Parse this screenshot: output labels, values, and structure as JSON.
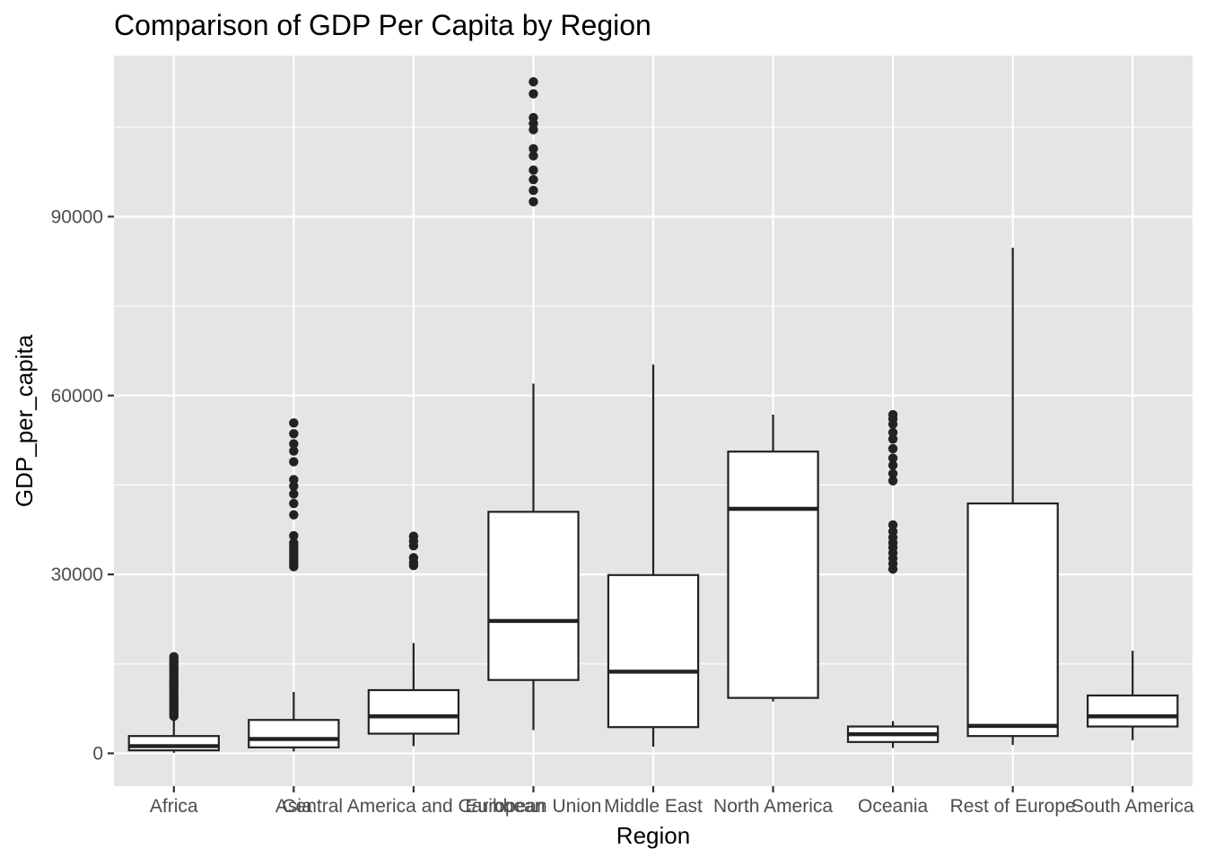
{
  "chart_data": {
    "type": "boxplot",
    "title": "Comparison of GDP Per Capita by Region",
    "xlabel": "Region",
    "ylabel": "GDP_per_capita",
    "ylim": [
      -5500,
      117000
    ],
    "y_ticks": [
      0,
      30000,
      60000,
      90000
    ],
    "y_tick_labels": [
      "0",
      "30000",
      "60000",
      "90000"
    ],
    "y_minor_ticks": [
      15000,
      45000,
      75000,
      105000
    ],
    "grid": true,
    "legend": "none",
    "colors": {
      "panel": "#E5E5E5",
      "grid": "#FFFFFF",
      "box_fill": "#FFFFFF",
      "stroke": "#222222",
      "text": "#4D4D4D"
    },
    "categories": [
      "Africa",
      "Asia",
      "Central America and Caribbean",
      "European Union",
      "Middle East",
      "North America",
      "Oceania",
      "Rest of Europe",
      "South America"
    ],
    "boxes": [
      {
        "category": "Africa",
        "min": 100,
        "q1": 500,
        "median": 1200,
        "q3": 2900,
        "max": 6000,
        "outliers": [
          6200,
          6600,
          7000,
          7400,
          7800,
          8200,
          8600,
          9000,
          9400,
          9800,
          10200,
          10600,
          11000,
          11400,
          11800,
          12200,
          12600,
          13000,
          13400,
          13800,
          14200,
          14600,
          15000,
          15400,
          15800,
          16200
        ]
      },
      {
        "category": "Asia",
        "min": 300,
        "q1": 1000,
        "median": 2400,
        "q3": 5600,
        "max": 10300,
        "outliers": [
          31300,
          31800,
          32300,
          32800,
          33300,
          33800,
          34300,
          34800,
          35300,
          36500,
          40000,
          41900,
          43500,
          44800,
          45900,
          48900,
          50700,
          51900,
          53600,
          55400
        ]
      },
      {
        "category": "Central America and Caribbean",
        "min": 1200,
        "q1": 3300,
        "median": 6200,
        "q3": 10600,
        "max": 18500,
        "outliers": [
          31500,
          32000,
          32800,
          34800,
          35600,
          36400
        ]
      },
      {
        "category": "European Union",
        "min": 3900,
        "q1": 12300,
        "median": 22200,
        "q3": 40500,
        "max": 62000,
        "outliers": [
          92500,
          94400,
          96200,
          97800,
          100200,
          101400,
          104600,
          105600,
          106600,
          110600,
          112600
        ]
      },
      {
        "category": "Middle East",
        "min": 1100,
        "q1": 4400,
        "median": 13700,
        "q3": 29900,
        "max": 65200,
        "outliers": []
      },
      {
        "category": "North America",
        "min": 8700,
        "q1": 9300,
        "median": 41000,
        "q3": 50600,
        "max": 56800,
        "outliers": []
      },
      {
        "category": "Oceania",
        "min": 900,
        "q1": 1900,
        "median": 3200,
        "q3": 4500,
        "max": 5400,
        "outliers": [
          30900,
          31800,
          32700,
          33600,
          34500,
          35300,
          36200,
          37200,
          38300,
          45700,
          46900,
          48300,
          49500,
          51100,
          52700,
          53800,
          55200,
          56100,
          56800
        ]
      },
      {
        "category": "Rest of Europe",
        "min": 1400,
        "q1": 2900,
        "median": 4600,
        "q3": 41900,
        "max": 84800,
        "outliers": []
      },
      {
        "category": "South America",
        "min": 2200,
        "q1": 4500,
        "median": 6200,
        "q3": 9700,
        "max": 17200,
        "outliers": []
      }
    ]
  }
}
